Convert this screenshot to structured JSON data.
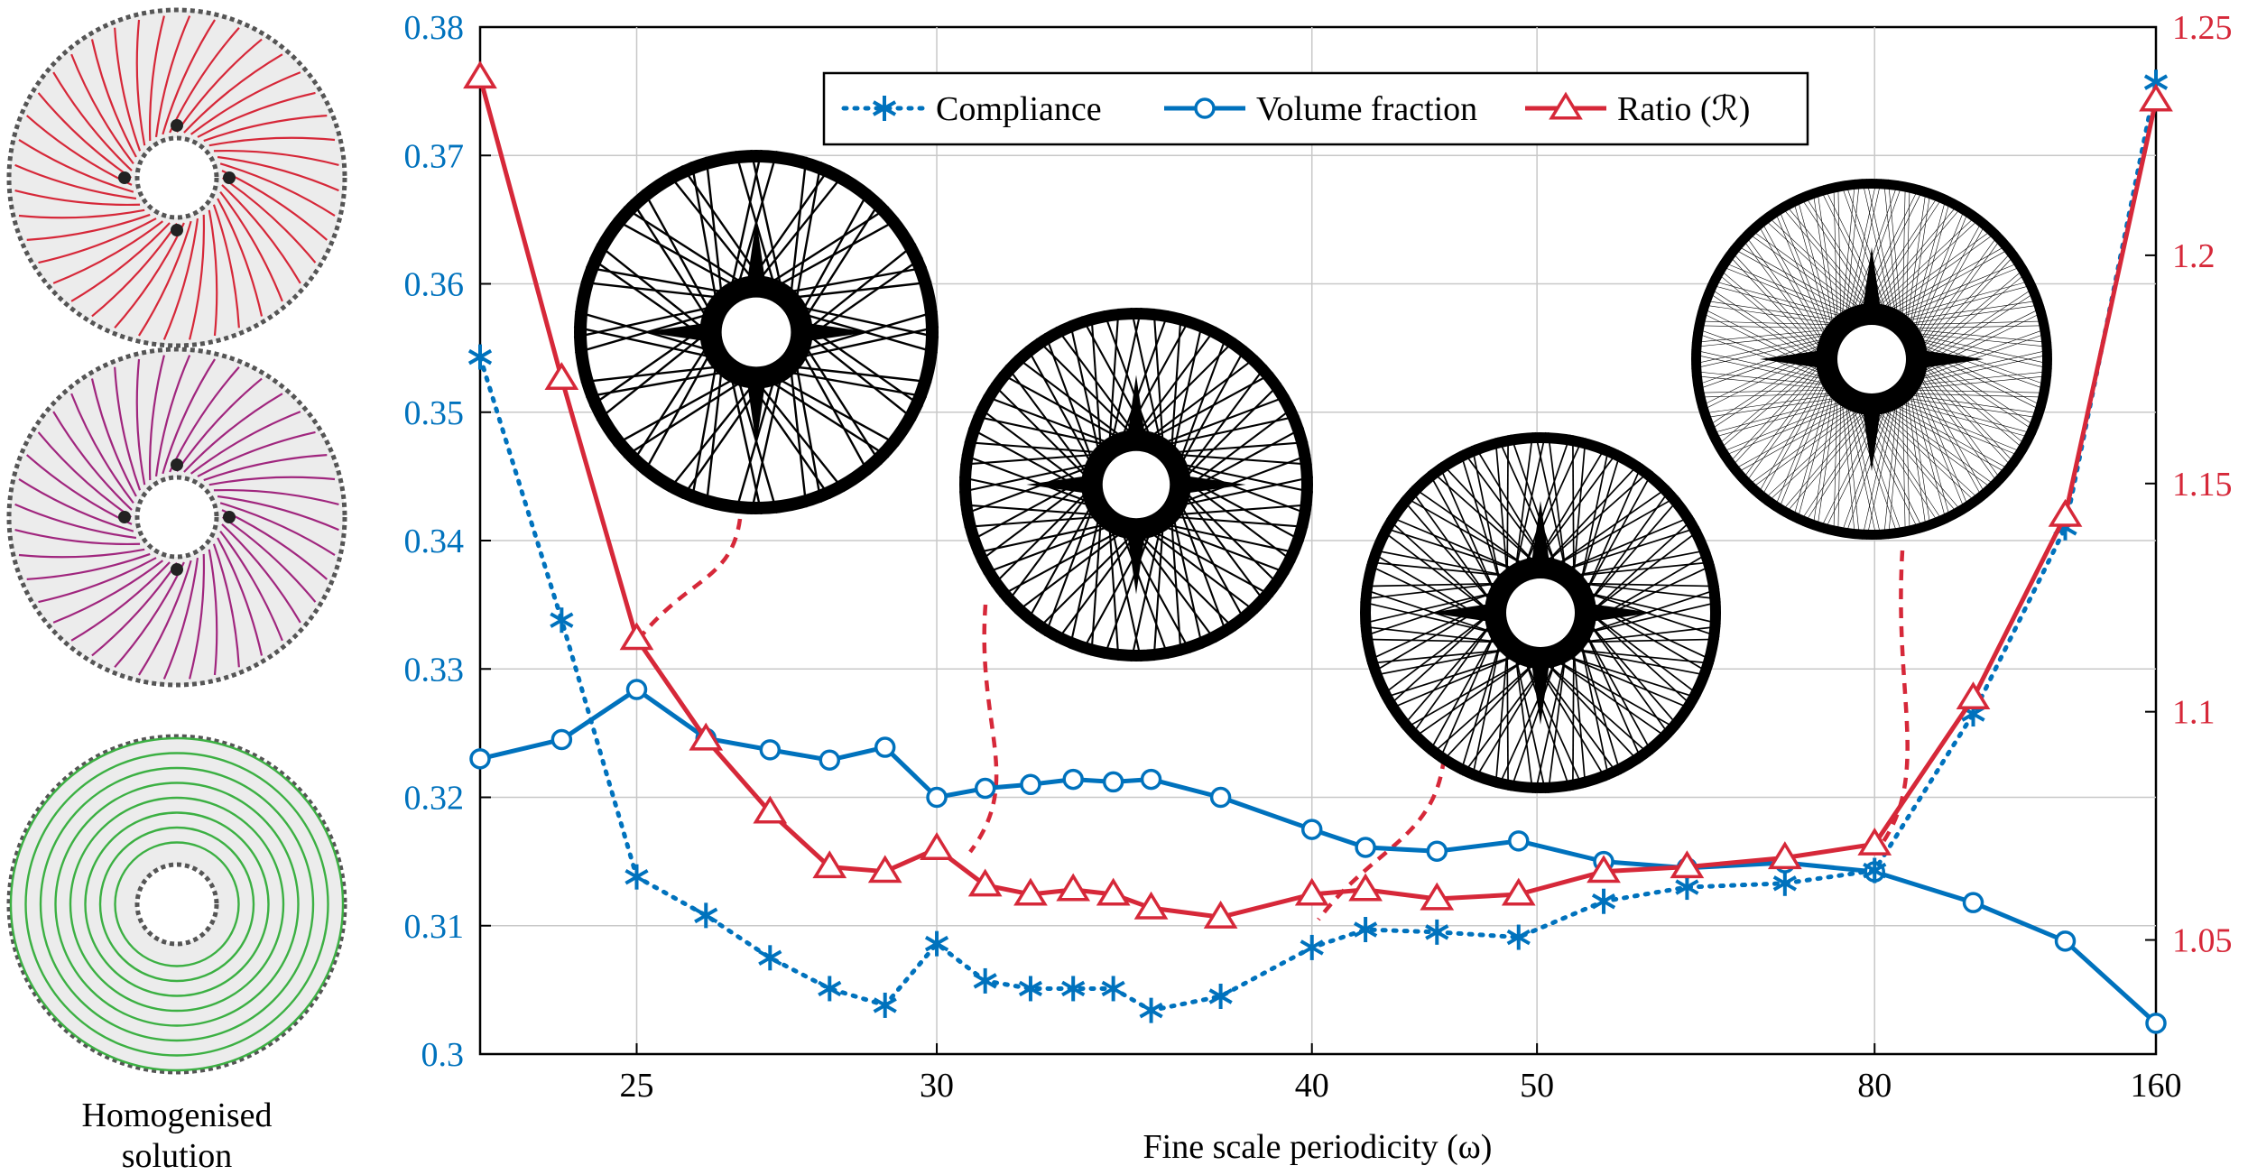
{
  "chart_data": {
    "type": "line",
    "xlabel": "Fine scale periodicity (ω)",
    "x_scale": "reciprocal",
    "x_tick_labels": [
      "25",
      "30",
      "40",
      "50",
      "80",
      "160"
    ],
    "x": [
      23,
      24,
      25,
      26,
      27,
      28,
      29,
      30,
      31,
      32,
      33,
      34,
      35,
      37,
      40,
      42,
      45,
      49,
      54,
      60,
      69,
      80,
      97,
      121,
      160
    ],
    "y_left": {
      "range": [
        0.3,
        0.38
      ],
      "ticks": [
        "0.3",
        "0.31",
        "0.32",
        "0.33",
        "0.34",
        "0.35",
        "0.36",
        "0.37",
        "0.38"
      ],
      "color": "#0072bd"
    },
    "y_right": {
      "range": [
        1.025,
        1.25
      ],
      "ticks": [
        "1.05",
        "1.1",
        "1.15",
        "1.2",
        "1.25"
      ],
      "color": "#d62839"
    },
    "grid": true,
    "legend_position": "top-center",
    "series": [
      {
        "name": "Compliance",
        "axis": "left",
        "style": "dotted",
        "marker": "asterisk",
        "color": "#0072bd",
        "values": [
          0.3543,
          0.3338,
          0.3138,
          0.3108,
          0.3075,
          0.3051,
          0.3038,
          0.3086,
          0.3057,
          0.3051,
          0.3051,
          0.3051,
          0.3034,
          0.3045,
          0.3083,
          0.3097,
          0.3095,
          0.3091,
          0.3119,
          0.313,
          0.3133,
          0.3143,
          0.3265,
          0.341,
          0.3757
        ]
      },
      {
        "name": "Volume fraction",
        "axis": "left",
        "style": "solid",
        "marker": "circle",
        "color": "#0072bd",
        "values": [
          0.323,
          0.3245,
          0.3284,
          0.3246,
          0.3237,
          0.3229,
          0.3239,
          0.32,
          0.3207,
          0.321,
          0.3214,
          0.3212,
          0.3214,
          0.32,
          0.3175,
          0.3161,
          0.3158,
          0.3166,
          0.315,
          0.3145,
          0.3149,
          0.3142,
          0.3118,
          0.3088,
          0.3024
        ]
      },
      {
        "name": "Ratio (ℛ)",
        "axis": "right",
        "style": "solid",
        "marker": "triangle",
        "color": "#d62839",
        "values": [
          1.239,
          1.173,
          1.116,
          1.094,
          1.078,
          1.066,
          1.065,
          1.07,
          1.062,
          1.06,
          1.061,
          1.06,
          1.057,
          1.055,
          1.06,
          1.061,
          1.059,
          1.06,
          1.065,
          1.066,
          1.068,
          1.071,
          1.103,
          1.143,
          1.234
        ]
      }
    ],
    "insets": [
      {
        "for_x": 25,
        "density": 16
      },
      {
        "for_x": 30,
        "density": 22
      },
      {
        "for_x": 40,
        "density": 30
      },
      {
        "for_x": 80,
        "density": 52
      }
    ]
  },
  "side_panel": {
    "caption_line1": "Homogenised",
    "caption_line2": "solution",
    "colors": {
      "top": "#d62839",
      "middle": "#a0267e",
      "bottom": "#3cb043"
    }
  }
}
